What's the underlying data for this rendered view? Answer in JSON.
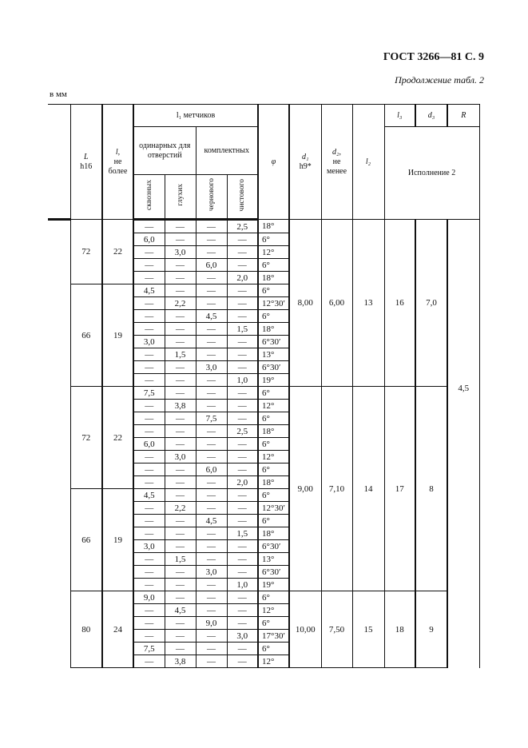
{
  "page_header": "ГОСТ 3266—81 С. 9",
  "continuation": "Продолжение табл. 2",
  "units": "в мм",
  "headers": {
    "L": "L",
    "L_sub": "h16",
    "l": "l,",
    "l_sub1": "не",
    "l_sub2": "более",
    "l1": "l₁ метчиков",
    "single": "одинарных для отверстий",
    "complete": "комплектных",
    "through": "сквозных",
    "blind": "глухих",
    "rough": "чернового",
    "finish": "чистового",
    "phi": "φ",
    "d1": "d₁",
    "d1_sub": "h9*",
    "d2": "d₂,",
    "d2_sub1": "не",
    "d2_sub2": "менее",
    "l2": "l₂",
    "l3": "l₃",
    "d3": "d₃",
    "R": "R",
    "execution": "Исполнение 2"
  },
  "R_value": "4,5",
  "blocks": [
    {
      "d1": "8,00",
      "d2": "6,00",
      "l2": "13",
      "l3": "16",
      "d3": "7,0",
      "groups": [
        {
          "L": "72",
          "l": "22",
          "rows": [
            [
              "—",
              "—",
              "—",
              "2,5",
              "18°"
            ],
            [
              "6,0",
              "—",
              "—",
              "—",
              "6°"
            ],
            [
              "—",
              "3,0",
              "—",
              "—",
              "12°"
            ],
            [
              "—",
              "—",
              "6,0",
              "—",
              "6°"
            ],
            [
              "—",
              "—",
              "—",
              "2,0",
              "18°"
            ]
          ]
        },
        {
          "L": "66",
          "l": "19",
          "rows": [
            [
              "4,5",
              "—",
              "—",
              "—",
              "6°"
            ],
            [
              "—",
              "2,2",
              "—",
              "—",
              "12°30′"
            ],
            [
              "—",
              "—",
              "4,5",
              "—",
              "6°"
            ],
            [
              "—",
              "—",
              "—",
              "1,5",
              "18°"
            ],
            [
              "3,0",
              "—",
              "—",
              "—",
              "6°30′"
            ],
            [
              "—",
              "1,5",
              "—",
              "—",
              "13°"
            ],
            [
              "—",
              "—",
              "3,0",
              "—",
              "6°30′"
            ],
            [
              "—",
              "—",
              "—",
              "1,0",
              "19°"
            ]
          ]
        }
      ]
    },
    {
      "d1": "9,00",
      "d2": "7,10",
      "l2": "14",
      "l3": "17",
      "d3": "8",
      "groups": [
        {
          "L": "72",
          "l": "22",
          "rows": [
            [
              "7,5",
              "—",
              "—",
              "—",
              "6°"
            ],
            [
              "—",
              "3,8",
              "—",
              "—",
              "12°"
            ],
            [
              "—",
              "—",
              "7,5",
              "—",
              "6°"
            ],
            [
              "—",
              "—",
              "—",
              "2,5",
              "18°"
            ],
            [
              "6,0",
              "—",
              "—",
              "—",
              "6°"
            ],
            [
              "—",
              "3,0",
              "—",
              "—",
              "12°"
            ],
            [
              "—",
              "—",
              "6,0",
              "—",
              "6°"
            ],
            [
              "—",
              "—",
              "—",
              "2,0",
              "18°"
            ]
          ]
        },
        {
          "L": "66",
          "l": "19",
          "rows": [
            [
              "4,5",
              "—",
              "—",
              "—",
              "6°"
            ],
            [
              "—",
              "2,2",
              "—",
              "—",
              "12°30′"
            ],
            [
              "—",
              "—",
              "4,5",
              "—",
              "6°"
            ],
            [
              "—",
              "—",
              "—",
              "1,5",
              "18°"
            ],
            [
              "3,0",
              "—",
              "—",
              "—",
              "6°30′"
            ],
            [
              "—",
              "1,5",
              "—",
              "—",
              "13°"
            ],
            [
              "—",
              "—",
              "3,0",
              "—",
              "6°30′"
            ],
            [
              "—",
              "—",
              "—",
              "1,0",
              "19°"
            ]
          ]
        }
      ]
    },
    {
      "d1": "10,00",
      "d2": "7,50",
      "l2": "15",
      "l3": "18",
      "d3": "9",
      "groups": [
        {
          "L": "80",
          "l": "24",
          "rows": [
            [
              "9,0",
              "—",
              "—",
              "—",
              "6°"
            ],
            [
              "—",
              "4,5",
              "—",
              "—",
              "12°"
            ],
            [
              "—",
              "—",
              "9,0",
              "—",
              "6°"
            ],
            [
              "—",
              "—",
              "—",
              "3,0",
              "17°30′"
            ],
            [
              "7,5",
              "—",
              "—",
              "—",
              "6°"
            ],
            [
              "—",
              "3,8",
              "—",
              "—",
              "12°"
            ]
          ]
        }
      ]
    }
  ]
}
